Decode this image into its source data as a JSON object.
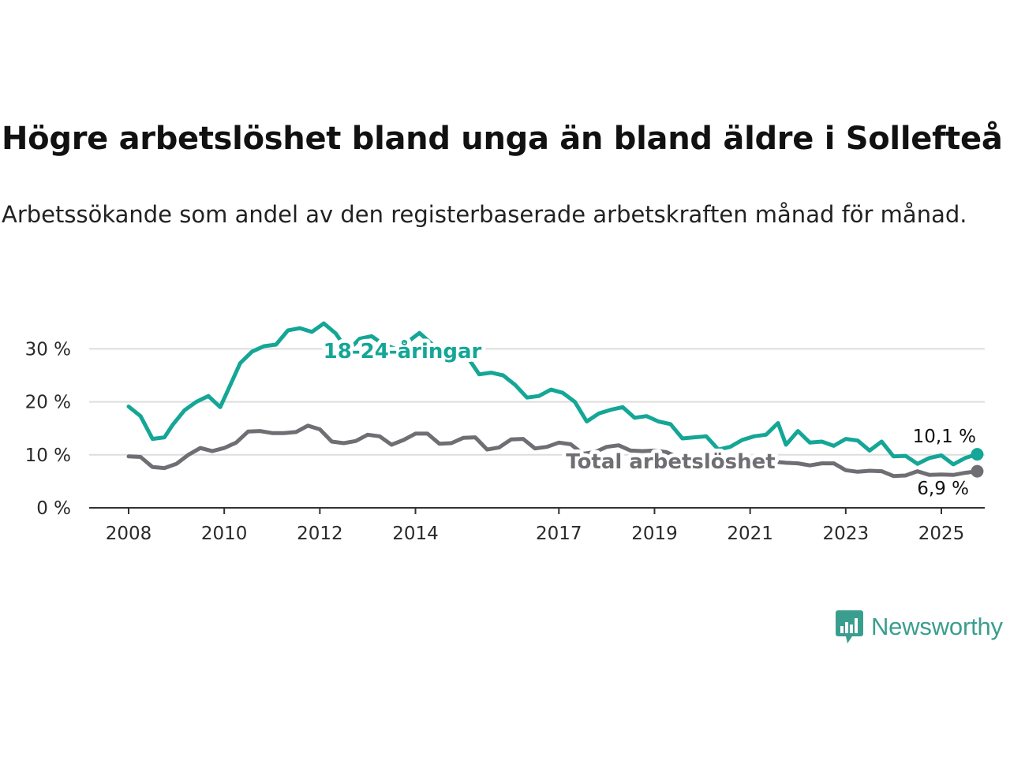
{
  "title": "Högre arbetslöshet bland unga än bland äldre i Sollefteå",
  "subtitle": "Arbetssökande som andel av den registerbaserade arbetskraften månad för månad.",
  "brand": "Newsworthy",
  "colors": {
    "youth": "#14a696",
    "total": "#6e6e73",
    "grid": "#dddddd",
    "axis": "#333333",
    "brand": "#3a9e8f"
  },
  "chart_data": {
    "type": "line",
    "title": "Högre arbetslöshet bland unga än bland äldre i Sollefteå",
    "subtitle": "Arbetssökande som andel av den registerbaserade arbetskraften månad för månad.",
    "ylim": [
      0,
      35
    ],
    "xlim": [
      "2007-06",
      "2025-10"
    ],
    "y_ticks": [
      0,
      10,
      20,
      30
    ],
    "y_tick_labels": [
      "0 %",
      "10 %",
      "20 %",
      "30 %"
    ],
    "x_ticks": [
      "2008-01",
      "2010-01",
      "2012-01",
      "2014-01",
      "2017-01",
      "2019-01",
      "2021-01",
      "2023-01",
      "2025-01"
    ],
    "x_tick_labels": [
      "2008",
      "2010",
      "2012",
      "2014",
      "2017",
      "2019",
      "2021",
      "2023",
      "2025"
    ],
    "grid": "horizontal",
    "series": [
      {
        "name": "18-24-åringar",
        "color": "#14a696",
        "end_label": "10,1 %",
        "points": [
          [
            "2008-01",
            19.1
          ],
          [
            "2008-04",
            17.3
          ],
          [
            "2008-07",
            13.0
          ],
          [
            "2008-10",
            13.3
          ],
          [
            "2008-12",
            15.6
          ],
          [
            "2009-03",
            18.4
          ],
          [
            "2009-06",
            20.0
          ],
          [
            "2009-09",
            21.1
          ],
          [
            "2009-12",
            19.0
          ],
          [
            "2010-02",
            22.3
          ],
          [
            "2010-05",
            27.3
          ],
          [
            "2010-08",
            29.5
          ],
          [
            "2010-11",
            30.5
          ],
          [
            "2011-02",
            30.8
          ],
          [
            "2011-05",
            33.5
          ],
          [
            "2011-08",
            33.9
          ],
          [
            "2011-11",
            33.2
          ],
          [
            "2012-02",
            34.8
          ],
          [
            "2012-05",
            32.9
          ],
          [
            "2012-08",
            29.6
          ],
          [
            "2012-11",
            31.9
          ],
          [
            "2013-02",
            32.4
          ],
          [
            "2013-05",
            30.8
          ],
          [
            "2013-08",
            30.0
          ],
          [
            "2013-11",
            31.3
          ],
          [
            "2014-02",
            33.0
          ],
          [
            "2014-05",
            31.0
          ],
          [
            "2014-08",
            28.0
          ],
          [
            "2014-11",
            29.5
          ],
          [
            "2015-02",
            28.5
          ],
          [
            "2015-05",
            25.2
          ],
          [
            "2015-08",
            25.5
          ],
          [
            "2015-11",
            25.0
          ],
          [
            "2016-02",
            23.2
          ],
          [
            "2016-05",
            20.8
          ],
          [
            "2016-08",
            21.1
          ],
          [
            "2016-11",
            22.3
          ],
          [
            "2017-02",
            21.7
          ],
          [
            "2017-05",
            20.0
          ],
          [
            "2017-08",
            16.3
          ],
          [
            "2017-11",
            17.8
          ],
          [
            "2018-02",
            18.5
          ],
          [
            "2018-05",
            19.0
          ],
          [
            "2018-08",
            17.0
          ],
          [
            "2018-11",
            17.3
          ],
          [
            "2019-02",
            16.3
          ],
          [
            "2019-05",
            15.8
          ],
          [
            "2019-08",
            13.1
          ],
          [
            "2019-11",
            13.3
          ],
          [
            "2020-02",
            13.5
          ],
          [
            "2020-05",
            11.0
          ],
          [
            "2020-08",
            11.5
          ],
          [
            "2020-11",
            12.8
          ],
          [
            "2021-02",
            13.5
          ],
          [
            "2021-05",
            13.8
          ],
          [
            "2021-08",
            16.0
          ],
          [
            "2021-10",
            11.9
          ],
          [
            "2022-01",
            14.5
          ],
          [
            "2022-04",
            12.3
          ],
          [
            "2022-07",
            12.5
          ],
          [
            "2022-10",
            11.7
          ],
          [
            "2023-01",
            13.0
          ],
          [
            "2023-04",
            12.7
          ],
          [
            "2023-07",
            10.8
          ],
          [
            "2023-10",
            12.5
          ],
          [
            "2024-01",
            9.7
          ],
          [
            "2024-04",
            9.8
          ],
          [
            "2024-07",
            8.3
          ],
          [
            "2024-10",
            9.4
          ],
          [
            "2025-01",
            9.9
          ],
          [
            "2025-04",
            8.2
          ],
          [
            "2025-07",
            9.4
          ],
          [
            "2025-10",
            10.1
          ]
        ]
      },
      {
        "name": "Total arbetslöshet",
        "color": "#6e6e73",
        "end_label": "6,9 %",
        "points": [
          [
            "2008-01",
            9.7
          ],
          [
            "2008-04",
            9.6
          ],
          [
            "2008-07",
            7.7
          ],
          [
            "2008-10",
            7.5
          ],
          [
            "2009-01",
            8.3
          ],
          [
            "2009-04",
            10.0
          ],
          [
            "2009-07",
            11.3
          ],
          [
            "2009-10",
            10.7
          ],
          [
            "2010-01",
            11.3
          ],
          [
            "2010-04",
            12.3
          ],
          [
            "2010-07",
            14.4
          ],
          [
            "2010-10",
            14.5
          ],
          [
            "2011-01",
            14.1
          ],
          [
            "2011-04",
            14.1
          ],
          [
            "2011-07",
            14.3
          ],
          [
            "2011-10",
            15.5
          ],
          [
            "2012-01",
            14.8
          ],
          [
            "2012-04",
            12.5
          ],
          [
            "2012-07",
            12.2
          ],
          [
            "2012-10",
            12.6
          ],
          [
            "2013-01",
            13.8
          ],
          [
            "2013-04",
            13.5
          ],
          [
            "2013-07",
            11.9
          ],
          [
            "2013-10",
            12.8
          ],
          [
            "2014-01",
            14.0
          ],
          [
            "2014-04",
            14.0
          ],
          [
            "2014-07",
            12.1
          ],
          [
            "2014-10",
            12.2
          ],
          [
            "2015-01",
            13.2
          ],
          [
            "2015-04",
            13.3
          ],
          [
            "2015-07",
            11.0
          ],
          [
            "2015-10",
            11.4
          ],
          [
            "2016-01",
            12.9
          ],
          [
            "2016-04",
            13.0
          ],
          [
            "2016-07",
            11.2
          ],
          [
            "2016-10",
            11.5
          ],
          [
            "2017-01",
            12.3
          ],
          [
            "2017-04",
            12.0
          ],
          [
            "2017-07",
            10.2
          ],
          [
            "2017-10",
            10.5
          ],
          [
            "2018-01",
            11.5
          ],
          [
            "2018-04",
            11.8
          ],
          [
            "2018-07",
            10.8
          ],
          [
            "2018-10",
            10.7
          ],
          [
            "2019-01",
            10.8
          ],
          [
            "2019-04",
            10.5
          ],
          [
            "2019-07",
            9.5
          ],
          [
            "2019-10",
            9.6
          ],
          [
            "2020-01",
            9.3
          ],
          [
            "2020-04",
            9.7
          ],
          [
            "2020-07",
            9.6
          ],
          [
            "2020-10",
            9.4
          ],
          [
            "2021-01",
            9.0
          ],
          [
            "2021-04",
            9.0
          ],
          [
            "2021-07",
            8.7
          ],
          [
            "2021-10",
            8.5
          ],
          [
            "2022-01",
            8.4
          ],
          [
            "2022-04",
            8.0
          ],
          [
            "2022-07",
            8.4
          ],
          [
            "2022-10",
            8.4
          ],
          [
            "2023-01",
            7.1
          ],
          [
            "2023-04",
            6.8
          ],
          [
            "2023-07",
            7.0
          ],
          [
            "2023-10",
            6.9
          ],
          [
            "2024-01",
            6.0
          ],
          [
            "2024-04",
            6.1
          ],
          [
            "2024-07",
            6.9
          ],
          [
            "2024-10",
            6.2
          ],
          [
            "2025-01",
            6.3
          ],
          [
            "2025-04",
            6.2
          ],
          [
            "2025-07",
            6.6
          ],
          [
            "2025-10",
            6.9
          ]
        ]
      }
    ]
  }
}
